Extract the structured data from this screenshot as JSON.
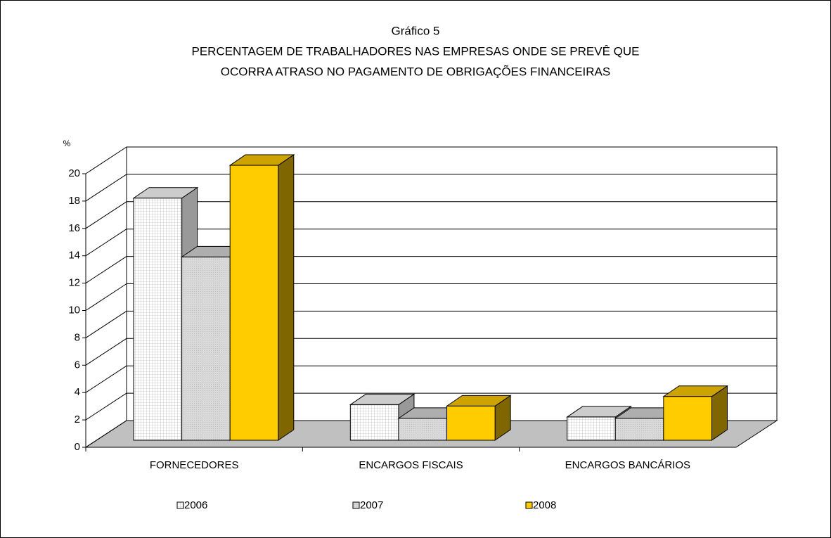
{
  "chart_data": {
    "type": "bar3d",
    "title": [
      "Gráfico 5",
      "PERCENTAGEM DE TRABALHADORES NAS EMPRESAS ONDE SE PREVÊ QUE",
      "OCORRA ATRASO NO PAGAMENTO DE OBRIGAÇÕES FINANCEIRAS"
    ],
    "y_label": "%",
    "categories": [
      "FORNECEDORES",
      "ENCARGOS FISCAIS",
      "ENCARGOS BANCÁRIOS"
    ],
    "series": [
      {
        "name": "2006",
        "color": "#ffffff",
        "values": [
          17.7,
          2.6,
          1.7
        ]
      },
      {
        "name": "2007",
        "color": "#d9d9d9",
        "values": [
          13.4,
          1.6,
          1.6
        ]
      },
      {
        "name": "2008",
        "color": "#ffcc00",
        "values": [
          20.1,
          2.5,
          3.2
        ]
      }
    ],
    "ylim": [
      0,
      20
    ],
    "yticks": [
      0,
      2,
      4,
      6,
      8,
      10,
      12,
      14,
      16,
      18,
      20
    ],
    "grid": true,
    "legend": "bottom"
  }
}
